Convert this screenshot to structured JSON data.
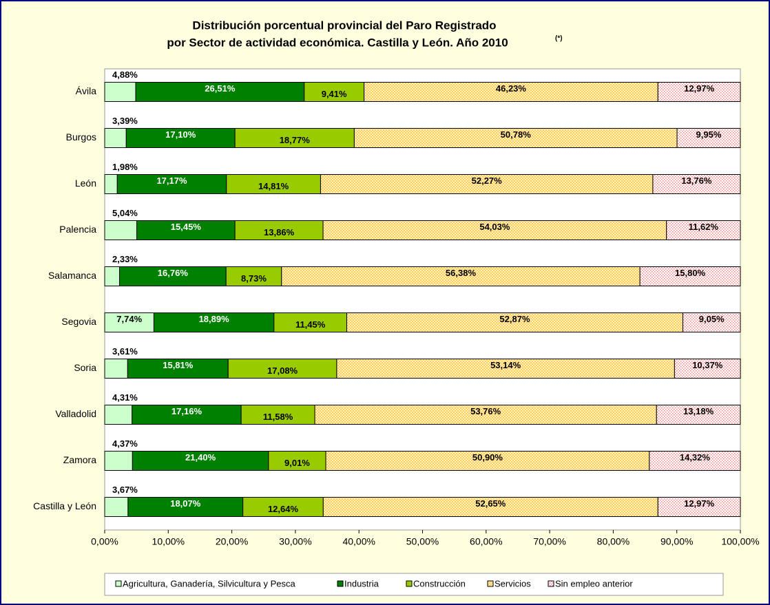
{
  "chart_data": {
    "type": "stacked_bar_horizontal",
    "title": [
      "Distribución porcentual provincial del Paro Registrado",
      "por Sector de actividad económica. Castilla y León. Año 2010"
    ],
    "title_note": "(*)",
    "categories": [
      "Ávila",
      "Burgos",
      "León",
      "Palencia",
      "Salamanca",
      "Segovia",
      "Soria",
      "Valladolid",
      "Zamora",
      "Castilla y León"
    ],
    "series": [
      {
        "name": "Agricultura, Ganadería, Silvicultura y Pesca",
        "color": "#ccffcc",
        "values": [
          4.88,
          3.39,
          1.98,
          5.04,
          2.33,
          7.74,
          3.61,
          4.31,
          4.37,
          3.67
        ],
        "value_labels": [
          "4,88%",
          "3,39%",
          "1,98%",
          "5,04%",
          "2,33%",
          "7,74%",
          "3,61%",
          "4,31%",
          "4,37%",
          "3,67%"
        ]
      },
      {
        "name": "Industria",
        "color": "#008000",
        "values": [
          26.51,
          17.1,
          17.17,
          15.45,
          16.76,
          18.89,
          15.81,
          17.16,
          21.4,
          18.07
        ],
        "value_labels": [
          "26,51%",
          "17,10%",
          "17,17%",
          "15,45%",
          "16,76%",
          "18,89%",
          "15,81%",
          "17,16%",
          "21,40%",
          "18,07%"
        ]
      },
      {
        "name": "Construcción",
        "color": "#99cc00",
        "values": [
          9.41,
          18.77,
          14.81,
          13.86,
          8.73,
          11.45,
          17.08,
          11.58,
          9.01,
          12.64
        ],
        "value_labels": [
          "9,41%",
          "18,77%",
          "14,81%",
          "13,86%",
          "8,73%",
          "11,45%",
          "17,08%",
          "11,58%",
          "9,01%",
          "12,64%"
        ]
      },
      {
        "name": "Servicios",
        "color": "#ffcc66",
        "values": [
          46.23,
          50.78,
          52.27,
          54.03,
          56.38,
          52.87,
          53.14,
          53.76,
          50.9,
          52.65
        ],
        "value_labels": [
          "46,23%",
          "50,78%",
          "52,27%",
          "54,03%",
          "56,38%",
          "52,87%",
          "53,14%",
          "53,76%",
          "50,90%",
          "52,65%"
        ]
      },
      {
        "name": "Sin empleo anterior",
        "color": "#ff8080",
        "values": [
          12.97,
          9.95,
          13.76,
          11.62,
          15.8,
          9.05,
          10.37,
          13.18,
          14.32,
          12.97
        ],
        "value_labels": [
          "12,97%",
          "9,95%",
          "13,76%",
          "11,62%",
          "15,80%",
          "9,05%",
          "10,37%",
          "13,18%",
          "14,32%",
          "12,97%"
        ]
      }
    ],
    "xlim": [
      0,
      100
    ],
    "xticks": [
      {
        "value": 0,
        "label": "0,00%"
      },
      {
        "value": 10,
        "label": "10,00%"
      },
      {
        "value": 20,
        "label": "20,00%"
      },
      {
        "value": 30,
        "label": "30,00%"
      },
      {
        "value": 40,
        "label": "40,00%"
      },
      {
        "value": 50,
        "label": "50,00%"
      },
      {
        "value": 60,
        "label": "60,00%"
      },
      {
        "value": 70,
        "label": "70,00%"
      },
      {
        "value": 80,
        "label": "80,00%"
      },
      {
        "value": 90,
        "label": "90,00%"
      },
      {
        "value": 100,
        "label": "100,00%"
      }
    ],
    "legend": "bottom"
  }
}
